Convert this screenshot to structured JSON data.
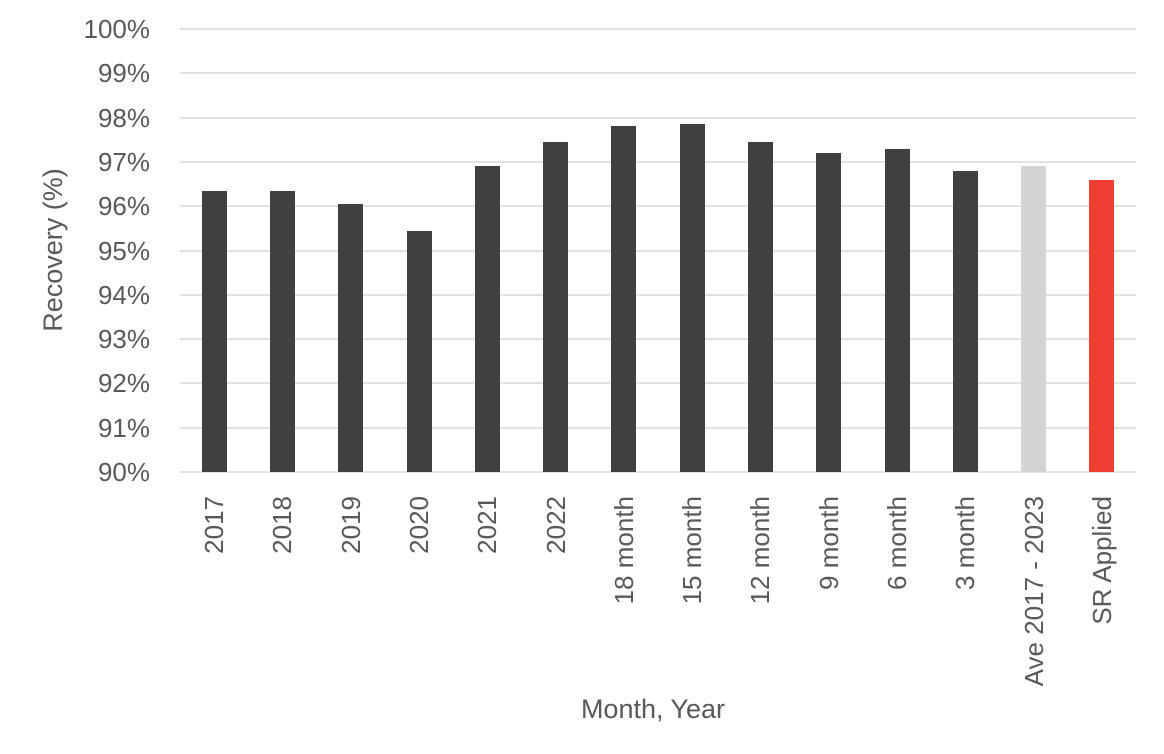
{
  "chart_data": {
    "type": "bar",
    "title": "",
    "xlabel": "Month, Year",
    "ylabel": "Recovery (%)",
    "ylim": [
      90,
      100
    ],
    "ytick_step": 1,
    "ytick_suffix": "%",
    "grid": true,
    "legend": false,
    "categories": [
      "2017",
      "2018",
      "2019",
      "2020",
      "2021",
      "2022",
      "18 month",
      "15 month",
      "12 month",
      "9 month",
      "6 month",
      "3 month",
      "Ave 2017 - 2023",
      "SR Applied"
    ],
    "series": [
      {
        "name": "Recovery",
        "values": [
          96.35,
          96.35,
          96.05,
          95.45,
          96.9,
          97.45,
          97.8,
          97.85,
          97.45,
          97.2,
          97.3,
          96.8,
          96.9,
          96.6
        ]
      }
    ],
    "bar_colors": [
      "#404042",
      "#404042",
      "#404042",
      "#404042",
      "#404042",
      "#404042",
      "#404042",
      "#404042",
      "#404042",
      "#404042",
      "#404042",
      "#404042",
      "#d4d4d4",
      "#ee3e31"
    ]
  },
  "colors": {
    "bar_default": "#404042",
    "bar_average": "#d4d4d4",
    "bar_highlight": "#ee3e31",
    "gridline": "#e2e2e2",
    "text": "#595959",
    "background": "#ffffff"
  }
}
